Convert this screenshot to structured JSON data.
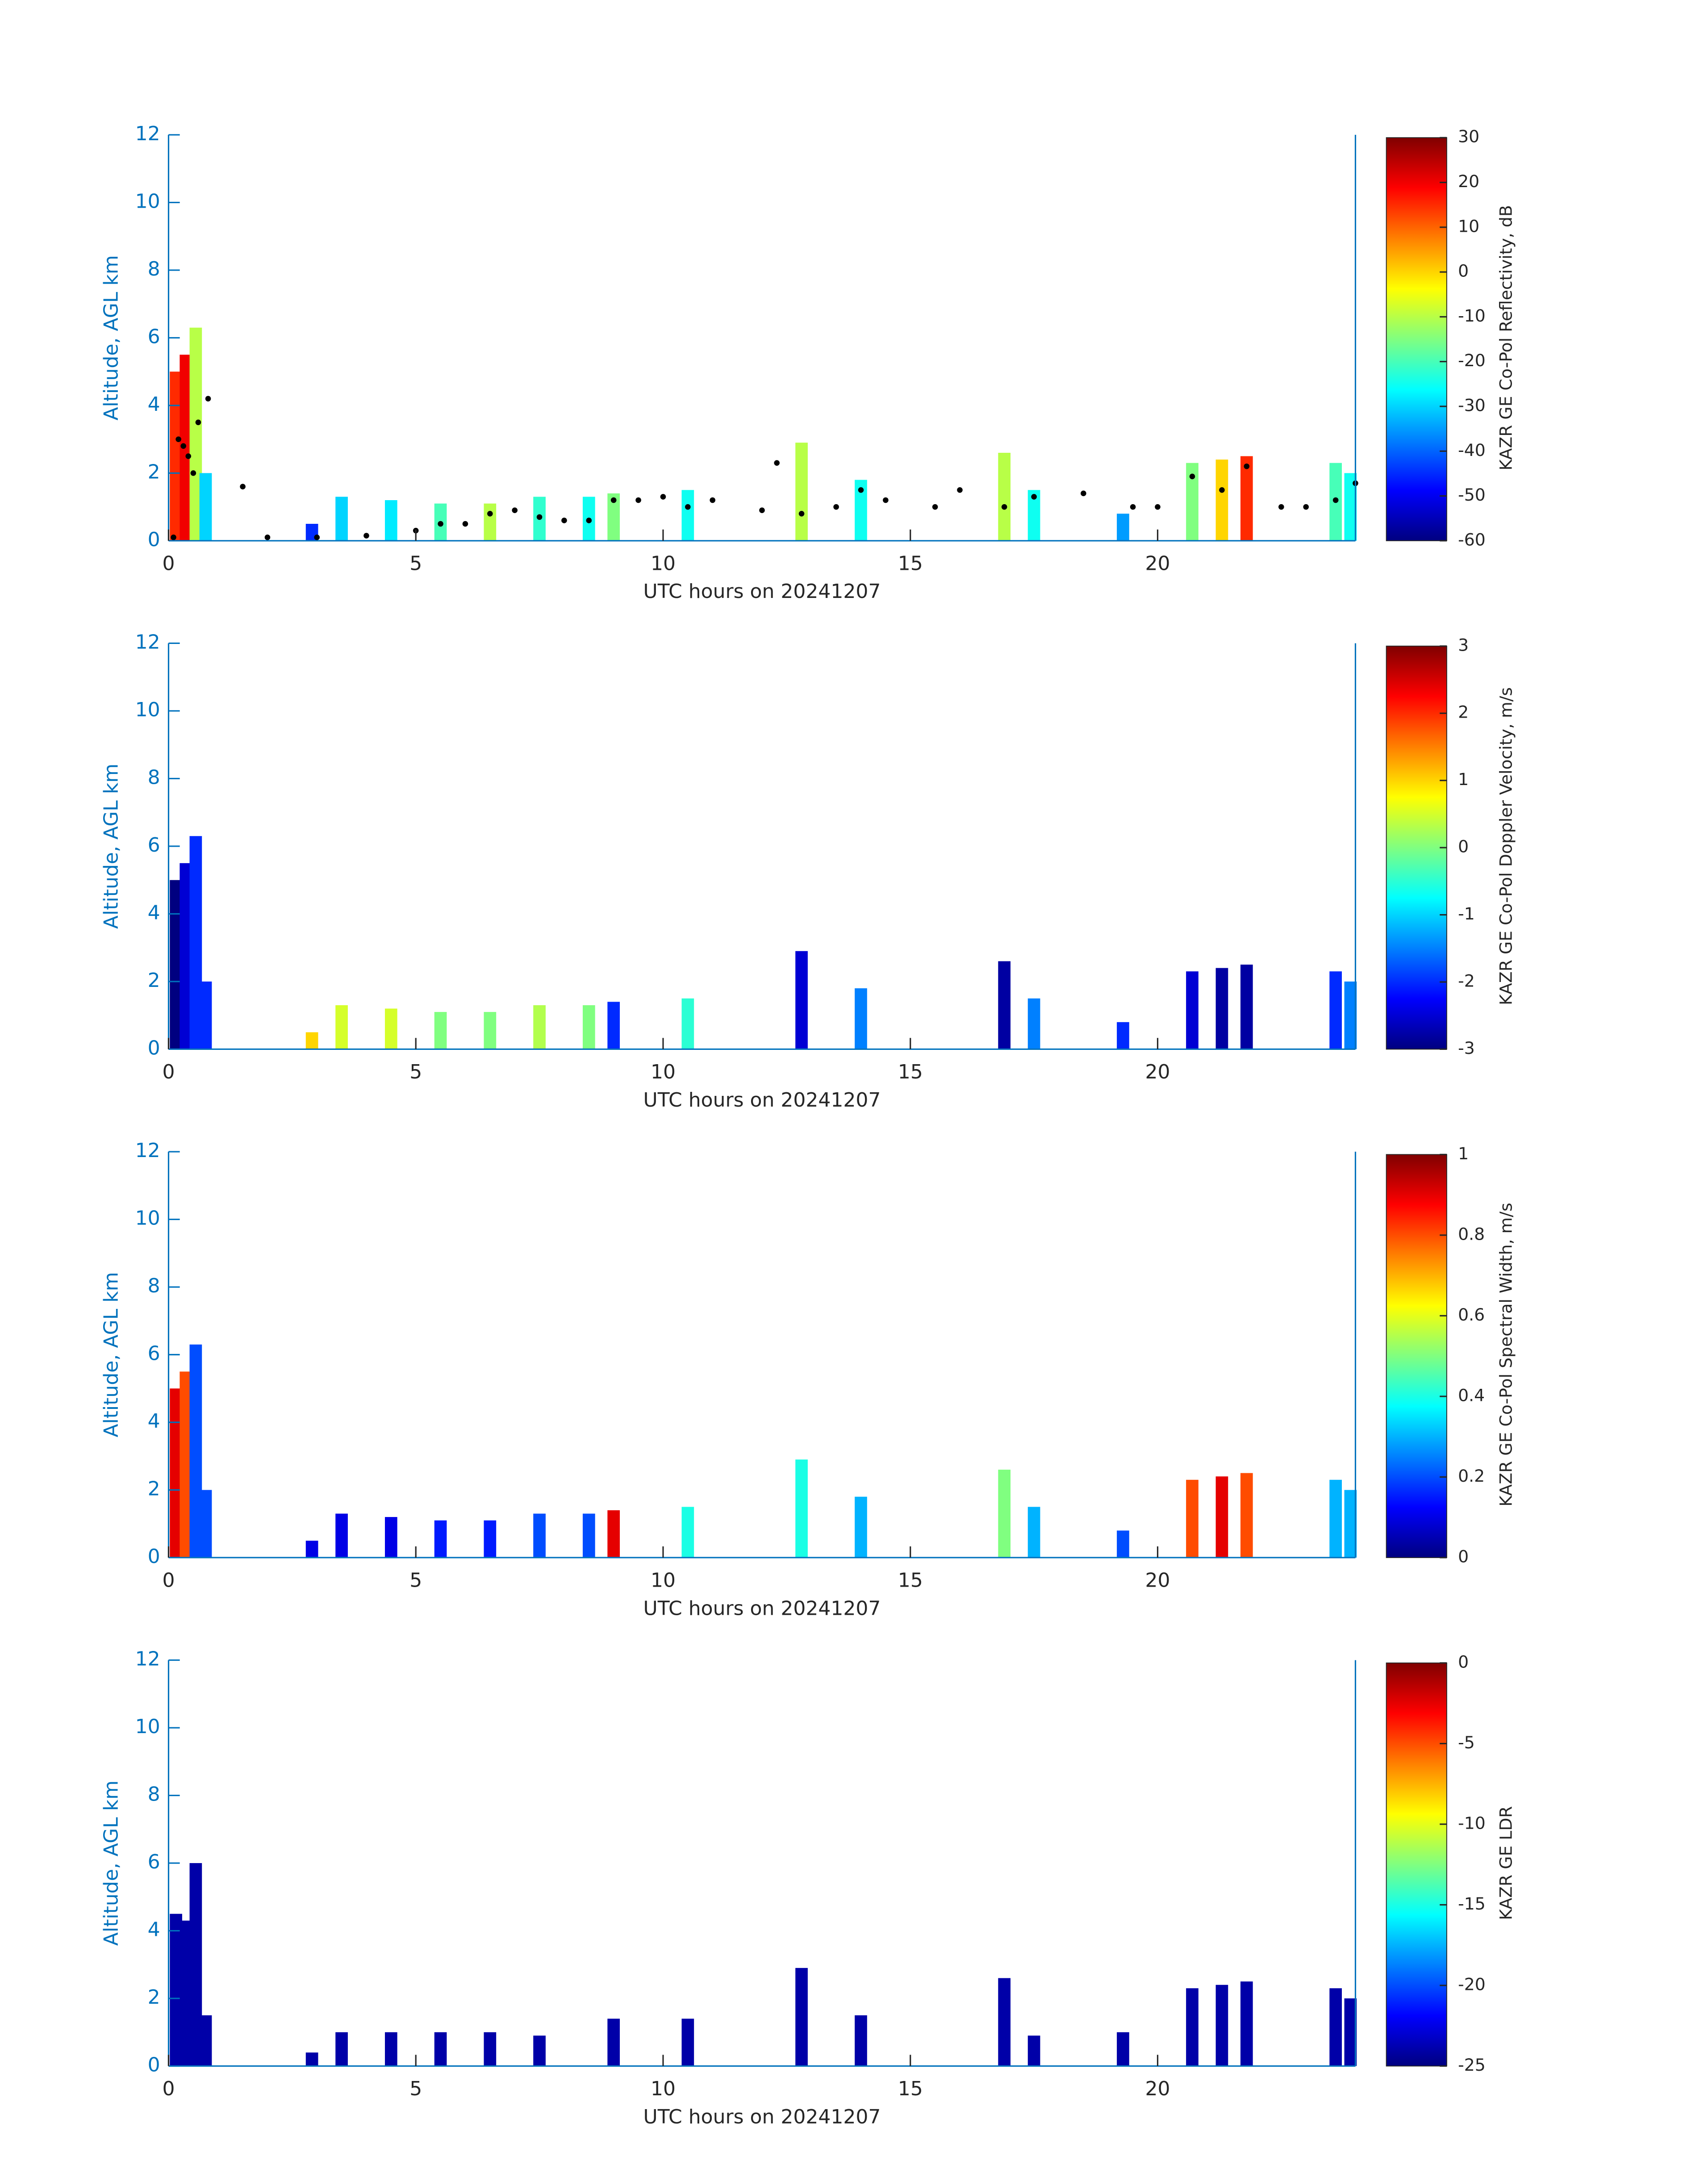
{
  "chart_data": [
    {
      "type": "heatmap",
      "ylabel": "Altitude, AGL km",
      "xlabel": "UTC hours on 20241207",
      "clabel": "KAZR GE Co-Pol Reflectivity, dB",
      "xlim": [
        0,
        24
      ],
      "xticks": [
        0,
        5,
        10,
        15,
        20
      ],
      "ylim": [
        0,
        12
      ],
      "yticks": [
        0,
        2,
        4,
        6,
        8,
        10,
        12
      ],
      "colormap": "jet",
      "clim": [
        -60,
        30
      ],
      "cticks": [
        -60,
        -50,
        -40,
        -30,
        -20,
        -10,
        0,
        10,
        20,
        30
      ],
      "axis_color": "#0072bd",
      "columns": {
        "x": [
          0.15,
          0.35,
          0.55,
          0.75,
          2.9,
          3.5,
          4.5,
          5.5,
          6.5,
          7.5,
          8.5,
          9.0,
          10.5,
          12.8,
          14.0,
          16.9,
          17.5,
          19.3,
          20.7,
          21.3,
          21.8,
          23.6,
          23.9
        ],
        "top": [
          5,
          5.5,
          6.3,
          2,
          0.5,
          1.3,
          1.2,
          1.1,
          1.1,
          1.3,
          1.3,
          1.4,
          1.5,
          2.9,
          1.8,
          2.6,
          1.5,
          0.8,
          2.3,
          2.4,
          2.5,
          2.3,
          2.0
        ],
        "values": [
          15,
          20,
          -10,
          -30,
          -45,
          -30,
          -28,
          -20,
          -10,
          -22,
          -25,
          -15,
          -25,
          -10,
          -25,
          -10,
          -25,
          -35,
          -15,
          0,
          15,
          -20,
          -25
        ]
      },
      "markers": {
        "color": "#000000",
        "x": [
          0.1,
          0.2,
          0.3,
          0.4,
          0.5,
          0.6,
          0.8,
          1.5,
          2.0,
          3.0,
          4.0,
          5.0,
          5.5,
          6.0,
          6.5,
          7.0,
          7.5,
          8.0,
          8.5,
          9.0,
          9.5,
          10.0,
          10.5,
          11.0,
          12.0,
          12.3,
          12.8,
          13.5,
          14.0,
          14.5,
          15.5,
          16.0,
          16.9,
          17.5,
          18.5,
          19.5,
          20.0,
          20.7,
          21.3,
          21.8,
          22.5,
          23.0,
          23.6,
          24.0
        ],
        "y": [
          0.1,
          3.0,
          2.8,
          2.5,
          2.0,
          3.5,
          4.2,
          1.6,
          0.1,
          0.1,
          0.15,
          0.3,
          0.5,
          0.5,
          0.8,
          0.9,
          0.7,
          0.6,
          0.6,
          1.2,
          1.2,
          1.3,
          1.0,
          1.2,
          0.9,
          2.3,
          0.8,
          1.0,
          1.5,
          1.2,
          1.0,
          1.5,
          1.0,
          1.3,
          1.4,
          1.0,
          1.0,
          1.9,
          1.5,
          2.2,
          1.0,
          1.0,
          1.2,
          1.7
        ]
      }
    },
    {
      "type": "heatmap",
      "ylabel": "Altitude, AGL km",
      "xlabel": "UTC hours on 20241207",
      "clabel": "KAZR GE Co-Pol Doppler Velocity, m/s",
      "xlim": [
        0,
        24
      ],
      "xticks": [
        0,
        5,
        10,
        15,
        20
      ],
      "ylim": [
        0,
        12
      ],
      "yticks": [
        0,
        2,
        4,
        6,
        8,
        10,
        12
      ],
      "colormap": "jet",
      "clim": [
        -3,
        3
      ],
      "cticks": [
        -3,
        -2,
        -1,
        0,
        1,
        2,
        3
      ],
      "axis_color": "#0072bd",
      "columns": {
        "x": [
          0.15,
          0.35,
          0.55,
          0.75,
          2.9,
          3.5,
          4.5,
          5.5,
          6.5,
          7.5,
          8.5,
          9.0,
          10.5,
          12.8,
          14.0,
          16.9,
          17.5,
          19.3,
          20.7,
          21.3,
          21.8,
          23.6,
          23.9
        ],
        "top": [
          5,
          5.5,
          6.3,
          2,
          0.5,
          1.3,
          1.2,
          1.1,
          1.1,
          1.3,
          1.3,
          1.4,
          1.5,
          2.9,
          1.8,
          2.6,
          1.5,
          0.8,
          2.3,
          2.4,
          2.5,
          2.3,
          2.0
        ],
        "values": [
          -3,
          -2.5,
          -2,
          -2,
          1,
          0.5,
          0.5,
          0,
          0,
          0.3,
          0,
          -2,
          -0.5,
          -2.5,
          -1.5,
          -2.8,
          -1.5,
          -2,
          -2.5,
          -2.8,
          -2.8,
          -2,
          -1.5
        ]
      }
    },
    {
      "type": "heatmap",
      "ylabel": "Altitude, AGL km",
      "xlabel": "UTC hours on 20241207",
      "clabel": "KAZR GE Co-Pol Spectral Width, m/s",
      "xlim": [
        0,
        24
      ],
      "xticks": [
        0,
        5,
        10,
        15,
        20
      ],
      "ylim": [
        0,
        12
      ],
      "yticks": [
        0,
        2,
        4,
        6,
        8,
        10,
        12
      ],
      "colormap": "jet",
      "clim": [
        0,
        1
      ],
      "cticks": [
        0,
        0.2,
        0.4,
        0.6,
        0.8,
        1
      ],
      "axis_color": "#0072bd",
      "columns": {
        "x": [
          0.15,
          0.35,
          0.55,
          0.75,
          2.9,
          3.5,
          4.5,
          5.5,
          6.5,
          7.5,
          8.5,
          9.0,
          10.5,
          12.8,
          14.0,
          16.9,
          17.5,
          19.3,
          20.7,
          21.3,
          21.8,
          23.6,
          23.9
        ],
        "top": [
          5,
          5.5,
          6.3,
          2,
          0.5,
          1.3,
          1.2,
          1.1,
          1.1,
          1.3,
          1.3,
          1.4,
          1.5,
          2.9,
          1.8,
          2.6,
          1.5,
          0.8,
          2.3,
          2.4,
          2.5,
          2.3,
          2.0
        ],
        "values": [
          0.9,
          0.8,
          0.2,
          0.2,
          0.1,
          0.1,
          0.1,
          0.15,
          0.15,
          0.2,
          0.2,
          0.9,
          0.4,
          0.4,
          0.3,
          0.5,
          0.3,
          0.2,
          0.8,
          0.9,
          0.8,
          0.3,
          0.3
        ]
      }
    },
    {
      "type": "heatmap",
      "ylabel": "Altitude, AGL km",
      "xlabel": "UTC hours on 20241207",
      "clabel": "KAZR GE LDR",
      "xlim": [
        0,
        24
      ],
      "xticks": [
        0,
        5,
        10,
        15,
        20
      ],
      "ylim": [
        0,
        12
      ],
      "yticks": [
        0,
        2,
        4,
        6,
        8,
        10,
        12
      ],
      "colormap": "jet",
      "clim": [
        -25,
        0
      ],
      "cticks": [
        -25,
        -20,
        -15,
        -10,
        -5,
        0
      ],
      "axis_color": "#0072bd",
      "columns": {
        "x": [
          0.15,
          0.35,
          0.55,
          0.75,
          2.9,
          3.5,
          4.5,
          5.5,
          6.5,
          7.5,
          8.5,
          9.0,
          10.5,
          12.8,
          14.0,
          16.9,
          17.5,
          19.3,
          20.7,
          21.3,
          21.8,
          23.6,
          23.9
        ],
        "top": [
          4.5,
          4.3,
          6.0,
          1.5,
          0.4,
          1.0,
          1.0,
          1.0,
          1.0,
          0.9,
          null,
          1.4,
          1.4,
          2.9,
          1.5,
          2.6,
          0.9,
          1.0,
          2.3,
          2.4,
          2.5,
          2.3,
          2.0
        ],
        "values": [
          -24,
          -24,
          -24,
          -24,
          -24,
          -24,
          -24,
          -24,
          -24,
          -24,
          null,
          -24,
          -24,
          -24,
          -24,
          -24,
          -24,
          -24,
          -24,
          -24,
          -24,
          -24,
          -24
        ]
      }
    }
  ]
}
